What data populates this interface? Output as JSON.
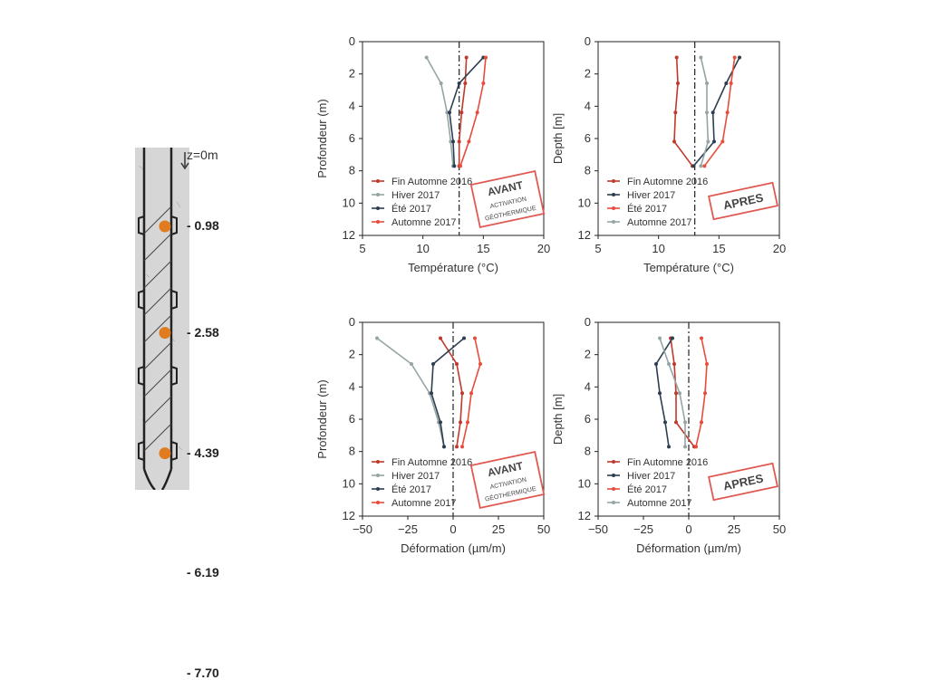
{
  "pile": {
    "origin_label": "z=0m",
    "sensors": [
      {
        "depth": 0.98,
        "label": "- 0.98"
      },
      {
        "depth": 2.58,
        "label": "- 2.58"
      },
      {
        "depth": 4.39,
        "label": "- 4.39"
      },
      {
        "depth": 6.19,
        "label": "- 6.19"
      },
      {
        "depth": 7.7,
        "label": "- 7.70"
      }
    ],
    "sensor_color": "#e07b1f"
  },
  "stamps": {
    "avant_line1": "AVANT",
    "avant_line2": "ACTIVATION",
    "avant_line3": "GÉOTHERMIQUE",
    "apres": "APRES",
    "color": "#e05a52"
  },
  "colors": {
    "dark_red": "#c0392b",
    "grey": "#95a5a6",
    "navy": "#2c3e50",
    "light_red": "#e74c3c"
  },
  "chart_data": [
    {
      "type": "line",
      "xlabel": "Température (°C)",
      "ylabel": "Profondeur (m)",
      "xlim": [
        5,
        20
      ],
      "ylim": [
        12,
        0
      ],
      "xticks": [
        "5",
        "10",
        "15",
        "20"
      ],
      "yticks": [
        "0",
        "2",
        "4",
        "6",
        "8",
        "10",
        "12"
      ],
      "reference_line_x": 13,
      "stamp": "avant",
      "series": [
        {
          "name": "Fin Automne 2016",
          "color_key": "dark_red",
          "depth": [
            0.98,
            2.58,
            4.39,
            6.19,
            7.7
          ],
          "x": [
            13.6,
            13.5,
            13.2,
            13.0,
            13.0
          ]
        },
        {
          "name": "Hiver 2017",
          "color_key": "grey",
          "depth": [
            0.98,
            2.58,
            4.39,
            6.19,
            7.7
          ],
          "x": [
            10.3,
            11.5,
            12.0,
            12.3,
            12.5
          ]
        },
        {
          "name": "Été 2017",
          "color_key": "navy",
          "depth": [
            0.98,
            2.58,
            4.39,
            6.19,
            7.7
          ],
          "x": [
            15.0,
            13.0,
            12.2,
            12.5,
            12.6
          ]
        },
        {
          "name": "Automne 2017",
          "color_key": "light_red",
          "depth": [
            0.98,
            2.58,
            4.39,
            6.19,
            7.7
          ],
          "x": [
            15.2,
            15.0,
            14.5,
            13.8,
            13.1
          ]
        }
      ]
    },
    {
      "type": "line",
      "xlabel": "Température (°C)",
      "ylabel": "Depth [m]",
      "xlim": [
        5,
        20
      ],
      "ylim": [
        12,
        0
      ],
      "xticks": [
        "5",
        "10",
        "15",
        "20"
      ],
      "yticks": [
        "0",
        "2",
        "4",
        "6",
        "8",
        "10",
        "12"
      ],
      "reference_line_x": 13,
      "stamp": "apres",
      "series": [
        {
          "name": "Fin Automne 2016",
          "color_key": "dark_red",
          "depth": [
            0.98,
            2.58,
            4.39,
            6.19,
            7.7
          ],
          "x": [
            11.5,
            11.6,
            11.4,
            11.3,
            12.8
          ]
        },
        {
          "name": "Hiver 2017",
          "color_key": "navy",
          "depth": [
            0.98,
            2.58,
            4.39,
            6.19,
            7.7
          ],
          "x": [
            16.7,
            15.6,
            14.5,
            14.6,
            12.9
          ]
        },
        {
          "name": "Été 2017",
          "color_key": "light_red",
          "depth": [
            0.98,
            2.58,
            4.39,
            6.19,
            7.7
          ],
          "x": [
            16.3,
            16.0,
            15.7,
            15.3,
            13.8
          ]
        },
        {
          "name": "Automne 2017",
          "color_key": "grey",
          "depth": [
            0.98,
            2.58,
            4.39,
            6.19,
            7.7
          ],
          "x": [
            13.5,
            14.0,
            14.0,
            14.1,
            13.5
          ]
        }
      ]
    },
    {
      "type": "line",
      "xlabel": "Déformation  (µm/m)",
      "ylabel": "Profondeur (m)",
      "xlim": [
        -50,
        50
      ],
      "ylim": [
        12,
        0
      ],
      "xticks": [
        "−50",
        "−25",
        "0",
        "25",
        "50"
      ],
      "yticks": [
        "0",
        "2",
        "4",
        "6",
        "8",
        "10",
        "12"
      ],
      "reference_line_x": 0,
      "stamp": "avant",
      "series": [
        {
          "name": "Fin Automne 2016",
          "color_key": "dark_red",
          "depth": [
            0.98,
            2.58,
            4.39,
            6.19,
            7.7
          ],
          "x": [
            -7,
            2,
            5,
            4,
            2
          ]
        },
        {
          "name": "Hiver 2017",
          "color_key": "grey",
          "depth": [
            0.98,
            2.58,
            4.39,
            6.19,
            7.7
          ],
          "x": [
            -42,
            -23,
            -13,
            -8,
            -5
          ]
        },
        {
          "name": "Été 2017",
          "color_key": "navy",
          "depth": [
            0.98,
            2.58,
            4.39,
            6.19,
            7.7
          ],
          "x": [
            6,
            -11,
            -12,
            -7,
            -5
          ]
        },
        {
          "name": "Automne 2017",
          "color_key": "light_red",
          "depth": [
            0.98,
            2.58,
            4.39,
            6.19,
            7.7
          ],
          "x": [
            12,
            15,
            10,
            8,
            5
          ]
        }
      ]
    },
    {
      "type": "line",
      "xlabel": "Déformation  (µm/m)",
      "ylabel": "Depth [m]",
      "xlim": [
        -50,
        50
      ],
      "ylim": [
        12,
        0
      ],
      "xticks": [
        "−50",
        "−25",
        "0",
        "25",
        "50"
      ],
      "yticks": [
        "0",
        "2",
        "4",
        "6",
        "8",
        "10",
        "12"
      ],
      "reference_line_x": 0,
      "stamp": "apres",
      "series": [
        {
          "name": "Fin Automne 2016",
          "color_key": "dark_red",
          "depth": [
            0.98,
            2.58,
            4.39,
            6.19,
            7.7
          ],
          "x": [
            -10,
            -8,
            -7,
            -7,
            3
          ]
        },
        {
          "name": "Hiver 2017",
          "color_key": "navy",
          "depth": [
            0.98,
            2.58,
            4.39,
            6.19,
            7.7
          ],
          "x": [
            -9,
            -18,
            -16,
            -13,
            -11
          ]
        },
        {
          "name": "Été 2017",
          "color_key": "light_red",
          "depth": [
            0.98,
            2.58,
            4.39,
            6.19,
            7.7
          ],
          "x": [
            7,
            10,
            9,
            7,
            4
          ]
        },
        {
          "name": "Automne 2017",
          "color_key": "grey",
          "depth": [
            0.98,
            2.58,
            4.39,
            6.19,
            7.7
          ],
          "x": [
            -16,
            -11,
            -5,
            -2,
            -2
          ]
        }
      ]
    }
  ]
}
